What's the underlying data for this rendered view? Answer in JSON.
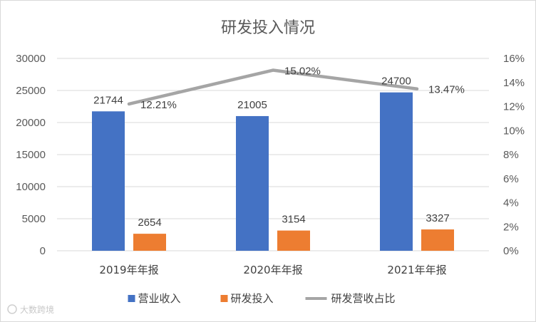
{
  "chart_data": {
    "type": "bar",
    "title": "研发投入情况",
    "categories": [
      "2019年年报",
      "2020年年报",
      "2021年年报"
    ],
    "y_left": {
      "ylim": [
        0,
        30000
      ],
      "ticks": [
        "0",
        "5000",
        "10000",
        "15000",
        "20000",
        "25000",
        "30000"
      ]
    },
    "y_right": {
      "ylim": [
        0,
        16
      ],
      "ticks": [
        "0%",
        "2%",
        "4%",
        "6%",
        "8%",
        "10%",
        "12%",
        "14%",
        "16%"
      ]
    },
    "series": [
      {
        "name": "营业收入",
        "kind": "bar",
        "axis": "left",
        "color": "#4472c4",
        "values": [
          21744,
          21005,
          24700
        ],
        "labels": [
          "21744",
          "21005",
          "24700"
        ]
      },
      {
        "name": "研发投入",
        "kind": "bar",
        "axis": "left",
        "color": "#ed7d31",
        "values": [
          2654,
          3154,
          3327
        ],
        "labels": [
          "2654",
          "3154",
          "3327"
        ]
      },
      {
        "name": "研发营收占比",
        "kind": "line",
        "axis": "right",
        "color": "#a5a5a5",
        "values": [
          12.21,
          15.02,
          13.47
        ],
        "labels": [
          "12.21%",
          "15.02%",
          "13.47%"
        ]
      }
    ],
    "grid": true,
    "legend": "bottom"
  },
  "watermark": "大数跨境"
}
